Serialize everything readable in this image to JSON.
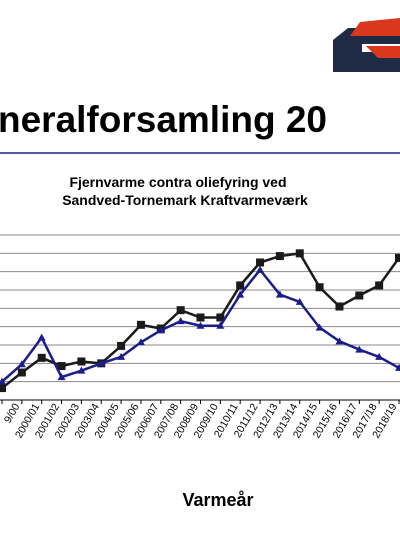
{
  "header": {
    "title": "neralforsamling 20"
  },
  "chart_data": {
    "type": "line",
    "title": [
      "Fjernvarme contra oliefyring  ved",
      "Sandved-Tornemark  Kraftvarmeværk"
    ],
    "x_label": "Varmeår",
    "categories": [
      null,
      "9/00",
      "2000/01",
      "2001/02",
      "2002/03",
      "2003/04",
      "2004/05",
      "2005/06",
      "2006/07",
      "2007/08",
      "2008/09",
      "2009/10",
      "2010/11",
      "2011/12",
      "2012/13",
      "2013/14",
      "2014/15",
      "2015/16",
      "2016/17",
      "2017/18",
      "2018/19"
    ],
    "ylim": [
      0,
      9
    ],
    "yticks": [
      0,
      1,
      2,
      3,
      4,
      5,
      6,
      7,
      8,
      9
    ],
    "grid": true,
    "series": [
      {
        "color": "#1a1a1a",
        "marker": "square",
        "values": [
          0.65,
          1.5,
          2.3,
          1.85,
          2.1,
          2.0,
          2.95,
          4.1,
          3.9,
          4.9,
          4.5,
          4.5,
          6.25,
          7.5,
          7.85,
          8.0,
          6.15,
          5.1,
          5.7,
          6.25,
          7.75
        ]
      },
      {
        "color": "#1c1c8a",
        "marker": "triangle",
        "values": [
          1.0,
          1.95,
          3.4,
          1.25,
          1.6,
          2.0,
          2.35,
          3.15,
          3.8,
          4.3,
          4.05,
          4.05,
          5.75,
          7.1,
          5.75,
          5.35,
          3.95,
          3.2,
          2.75,
          2.35,
          1.75
        ]
      }
    ]
  }
}
